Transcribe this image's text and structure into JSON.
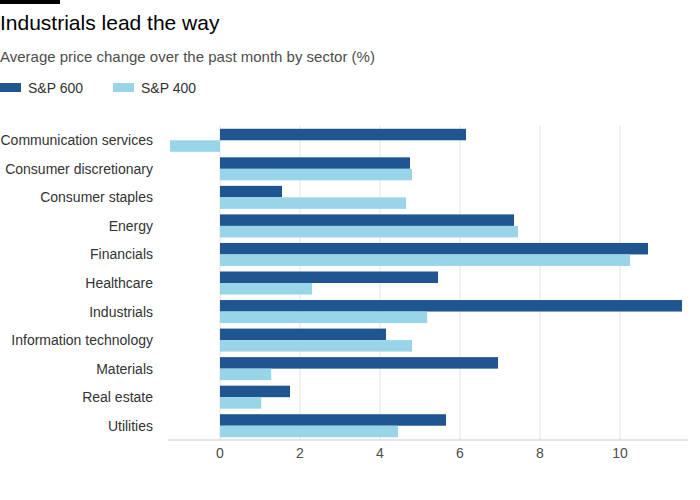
{
  "chart_data": {
    "type": "bar",
    "orientation": "horizontal",
    "title": "Industrials lead the way",
    "subtitle": "Average price change over the past month by sector (%)",
    "categories": [
      "Communication services",
      "Consumer discretionary",
      "Consumer staples",
      "Energy",
      "Financials",
      "Healthcare",
      "Industrials",
      "Information technology",
      "Materials",
      "Real estate",
      "Utilities"
    ],
    "series": [
      {
        "name": "S&P 600",
        "color": "#1f5590",
        "values": [
          6.15,
          4.75,
          1.55,
          7.35,
          10.7,
          5.45,
          11.55,
          4.15,
          6.95,
          1.75,
          5.65
        ]
      },
      {
        "name": "S&P 400",
        "color": "#99d5e9",
        "values": [
          -1.25,
          4.8,
          4.65,
          7.45,
          10.25,
          2.3,
          5.18,
          4.8,
          1.28,
          1.03,
          4.45
        ]
      }
    ],
    "xlim": [
      -1.3,
      11.7
    ],
    "xticks": [
      0,
      2,
      4,
      6,
      8,
      10
    ],
    "grid": true,
    "legend": "top-left"
  }
}
